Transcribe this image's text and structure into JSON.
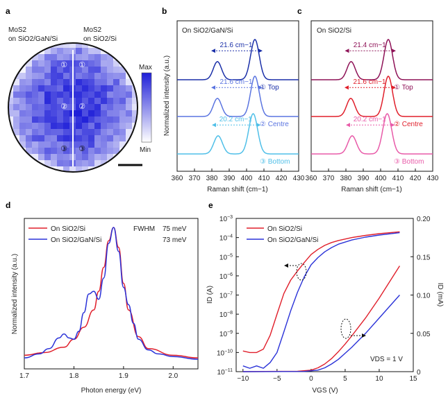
{
  "panels": {
    "a": {
      "label": "a",
      "left_text": [
        "MoS2",
        "on SiO2/GaN/Si"
      ],
      "right_text": [
        "MoS2",
        "on SiO2/Si"
      ],
      "colorbar_max": "Max",
      "colorbar_min": "Min",
      "point_marks": [
        "①",
        "②",
        "③"
      ]
    },
    "b": {
      "label": "b",
      "title": "On SiO2/GaN/Si",
      "xlabel": "Raman shift (cm−1)",
      "ylabel": "Normalized intensity (a.u.)",
      "xticks": [
        "360",
        "370",
        "380",
        "390",
        "400",
        "410",
        "420",
        "430"
      ],
      "traces": [
        {
          "mark": "① Top",
          "shift": "21.6 cm−1",
          "color": "#1a2fa8"
        },
        {
          "mark": "② Centre",
          "shift": "21.6 cm−1",
          "color": "#5a74e0"
        },
        {
          "mark": "③ Bottom",
          "shift": "20.2 cm−1",
          "color": "#4fbfe8"
        }
      ]
    },
    "c": {
      "label": "c",
      "title": "On SiO2/Si",
      "xlabel": "Raman shift (cm−1)",
      "xticks": [
        "360",
        "370",
        "380",
        "390",
        "400",
        "410",
        "420",
        "430"
      ],
      "traces": [
        {
          "mark": "① Top",
          "shift": "21.4 cm−1",
          "color": "#8e1257"
        },
        {
          "mark": "② Centre",
          "shift": "21.6 cm−1",
          "color": "#e01e2a"
        },
        {
          "mark": "③ Bottom",
          "shift": "20.2 cm−1",
          "color": "#e85aa8"
        }
      ]
    },
    "d": {
      "label": "d",
      "xlabel": "Photon energy (eV)",
      "ylabel": "Normalized intensity (a.u.)",
      "xticks": [
        "1.7",
        "1.8",
        "1.9",
        "2.0"
      ],
      "legend": [
        {
          "name": "On SiO2/Si",
          "color": "#e01e2a"
        },
        {
          "name": "On SiO2/GaN/Si",
          "color": "#2a32d8"
        }
      ],
      "fwhm_label": "FWHM",
      "fwhm_values": [
        {
          "value": "75 meV",
          "color": "#e01e2a"
        },
        {
          "value": "73 meV",
          "color": "#2a32d8"
        }
      ]
    },
    "e": {
      "label": "e",
      "xlabel": "VGS (V)",
      "ylabel_left": "ID (A)",
      "ylabel_right": "ID (mA)",
      "xticks": [
        "−10",
        "−5",
        "0",
        "5",
        "10",
        "15"
      ],
      "yticks_left": [
        "10−11",
        "10−10",
        "10−9",
        "10−8",
        "10−7",
        "10−6",
        "10−5",
        "10−4",
        "10−3"
      ],
      "yticks_right": [
        "0",
        "0.05",
        "0.10",
        "0.15",
        "0.20"
      ],
      "legend": [
        {
          "name": "On SiO2/Si",
          "color": "#e01e2a"
        },
        {
          "name": "On SiO2/GaN/Si",
          "color": "#2a32d8"
        }
      ],
      "vds_note": "VDS = 1 V"
    }
  },
  "chart_data": [
    {
      "type": "line",
      "panel": "b",
      "title": "On SiO2/GaN/Si",
      "xlabel": "Raman shift (cm−1)",
      "ylabel": "Normalized intensity (a.u.)",
      "xlim": [
        360,
        430
      ],
      "series": [
        {
          "name": "Top",
          "peaks": [
            {
              "center": 383.2,
              "height": 0.45,
              "width": 5.0
            },
            {
              "center": 404.8,
              "height": 1.0,
              "width": 5.2
            }
          ]
        },
        {
          "name": "Centre",
          "peaks": [
            {
              "center": 383.2,
              "height": 0.45,
              "width": 5.0
            },
            {
              "center": 404.8,
              "height": 1.0,
              "width": 5.2
            }
          ]
        },
        {
          "name": "Bottom",
          "peaks": [
            {
              "center": 383.6,
              "height": 0.45,
              "width": 5.2
            },
            {
              "center": 403.8,
              "height": 1.0,
              "width": 5.4
            }
          ]
        }
      ]
    },
    {
      "type": "line",
      "panel": "c",
      "title": "On SiO2/Si",
      "xlabel": "Raman shift (cm−1)",
      "xlim": [
        360,
        430
      ],
      "series": [
        {
          "name": "Top",
          "peaks": [
            {
              "center": 383.0,
              "height": 0.45,
              "width": 5.0
            },
            {
              "center": 404.4,
              "height": 1.0,
              "width": 5.2
            }
          ]
        },
        {
          "name": "Centre",
          "peaks": [
            {
              "center": 382.8,
              "height": 0.45,
              "width": 5.0
            },
            {
              "center": 404.4,
              "height": 1.0,
              "width": 5.2
            }
          ]
        },
        {
          "name": "Bottom",
          "peaks": [
            {
              "center": 383.6,
              "height": 0.45,
              "width": 5.2
            },
            {
              "center": 403.8,
              "height": 1.0,
              "width": 5.4
            }
          ]
        }
      ]
    },
    {
      "type": "line",
      "panel": "d",
      "xlabel": "Photon energy (eV)",
      "ylabel": "Normalized intensity (a.u.)",
      "xlim": [
        1.7,
        2.05
      ],
      "series": [
        {
          "name": "On SiO2/Si",
          "x": [
            1.7,
            1.74,
            1.78,
            1.8,
            1.82,
            1.84,
            1.85,
            1.86,
            1.87,
            1.88,
            1.89,
            1.9,
            1.91,
            1.93,
            1.95,
            2.0,
            2.05
          ],
          "y": [
            0.04,
            0.06,
            0.1,
            0.16,
            0.25,
            0.38,
            0.52,
            0.7,
            0.9,
            1.0,
            0.85,
            0.58,
            0.38,
            0.18,
            0.09,
            0.04,
            0.02
          ]
        },
        {
          "name": "On SiO2/GaN/Si",
          "x": [
            1.7,
            1.73,
            1.75,
            1.77,
            1.78,
            1.79,
            1.8,
            1.81,
            1.82,
            1.83,
            1.84,
            1.85,
            1.86,
            1.87,
            1.88,
            1.89,
            1.9,
            1.91,
            1.92,
            1.93,
            1.95,
            1.97,
            2.0,
            2.05
          ],
          "y": [
            0.02,
            0.05,
            0.09,
            0.17,
            0.2,
            0.17,
            0.16,
            0.22,
            0.36,
            0.5,
            0.52,
            0.46,
            0.62,
            0.88,
            1.0,
            0.82,
            0.55,
            0.42,
            0.28,
            0.16,
            0.08,
            0.05,
            0.03,
            0.01
          ]
        }
      ]
    },
    {
      "type": "line",
      "panel": "e",
      "xlabel": "VGS (V)",
      "ylabel": "ID (A)",
      "xlim": [
        -11,
        15
      ],
      "ylim_log": [
        1e-11,
        0.001
      ],
      "ylim_right_mA": [
        0,
        0.2
      ],
      "series": [
        {
          "name": "On SiO2/Si (log)",
          "x": [
            -10,
            -9,
            -8,
            -7,
            -6,
            -5,
            -4,
            -3,
            -2,
            -1,
            0,
            1,
            2,
            3,
            4,
            6,
            8,
            10,
            13
          ],
          "y": [
            1.2e-10,
            1e-10,
            1e-10,
            1.5e-10,
            8e-10,
            1e-08,
            1.2e-07,
            6e-07,
            1.8e-06,
            5e-06,
            1.3e-05,
            2.4e-05,
            3.9e-05,
            5.5e-05,
            7e-05,
            0.0001,
            0.00013,
            0.00016,
            0.0002
          ]
        },
        {
          "name": "On SiO2/GaN/Si (log)",
          "x": [
            -10,
            -9,
            -8,
            -7,
            -6,
            -5,
            -4,
            -3,
            -2,
            -1,
            0,
            1,
            2,
            3,
            4,
            6,
            8,
            10,
            13
          ],
          "y": [
            2e-11,
            1.5e-11,
            2e-11,
            1.5e-11,
            3e-11,
            1e-10,
            1.2e-09,
            1.5e-08,
            1.4e-07,
            9e-07,
            3.8e-06,
            9e-06,
            1.8e-05,
            3e-05,
            4.5e-05,
            7.5e-05,
            0.000105,
            0.000135,
            0.00018
          ]
        },
        {
          "name": "On SiO2/Si (linear, mA)",
          "x": [
            -10,
            -2,
            0,
            1,
            2,
            3,
            4,
            5,
            6,
            8,
            10,
            13
          ],
          "y": [
            0,
            0.0005,
            0.002,
            0.005,
            0.01,
            0.017,
            0.026,
            0.036,
            0.047,
            0.07,
            0.096,
            0.138
          ]
        },
        {
          "name": "On SiO2/GaN/Si (linear, mA)",
          "x": [
            -10,
            -1,
            1,
            2,
            3,
            4,
            5,
            6,
            8,
            10,
            13
          ],
          "y": [
            0,
            0.0003,
            0.002,
            0.005,
            0.01,
            0.016,
            0.024,
            0.032,
            0.05,
            0.07,
            0.1
          ]
        }
      ]
    }
  ]
}
